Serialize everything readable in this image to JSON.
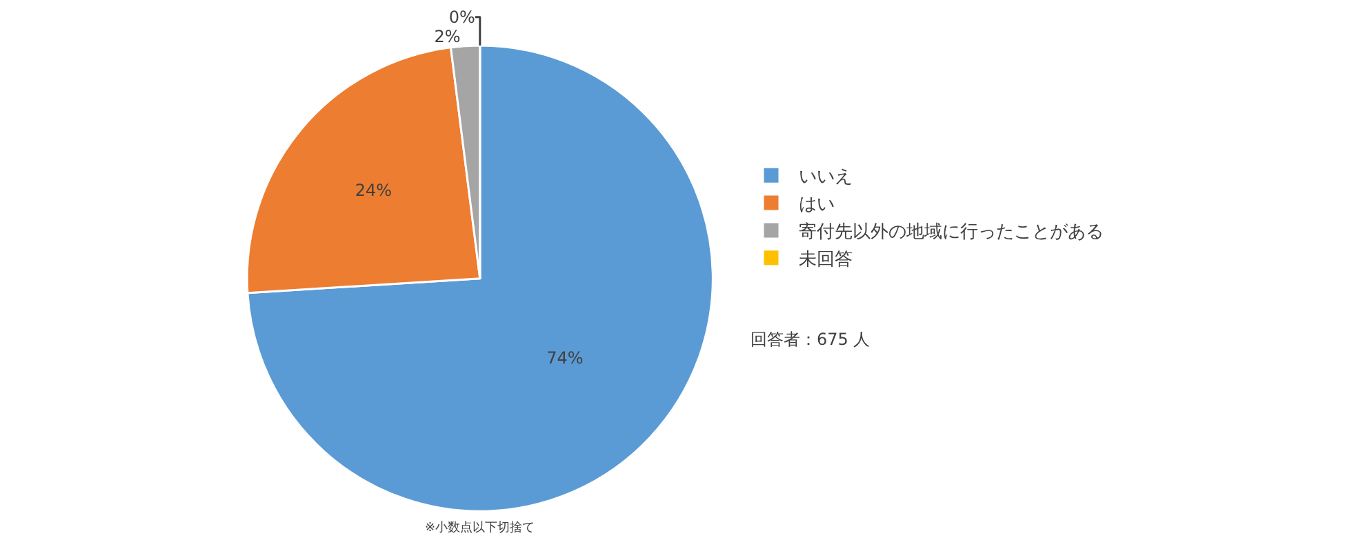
{
  "chart_data": {
    "type": "pie",
    "categories": [
      "いいえ",
      "はい",
      "寄付先以外の地域に行ったことがある",
      "未回答"
    ],
    "values": [
      74,
      24,
      2,
      0
    ],
    "colors": [
      "#5b9bd5",
      "#ed7d31",
      "#a5a5a5",
      "#ffc000"
    ],
    "value_labels": [
      "74%",
      "24%",
      "2%",
      "0%"
    ],
    "legend": "right",
    "annotations": [
      "回答者：675 人",
      "※小数点以下切捨て"
    ]
  }
}
